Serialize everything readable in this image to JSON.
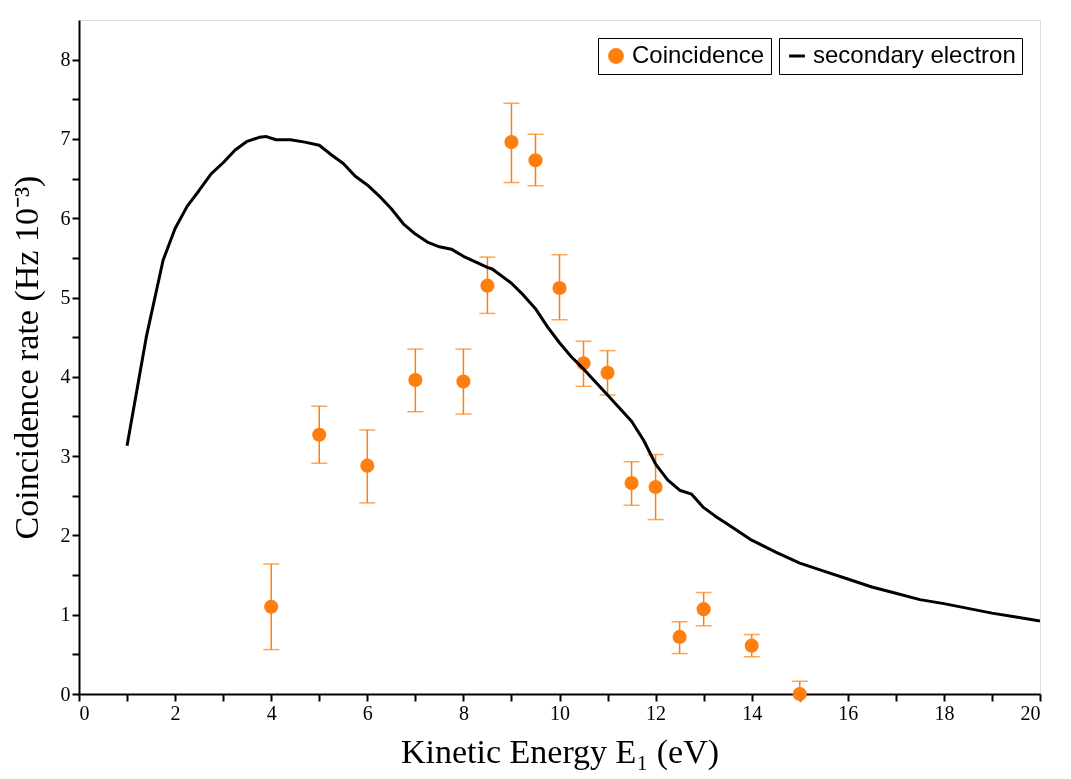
{
  "chart_data": {
    "type": "scatter",
    "xlabel": "Kinetic Energy E₁ (eV)",
    "ylabel": "Coincidence rate (Hz 10⁻³)",
    "xlim": [
      0,
      20
    ],
    "ylim": [
      0,
      8.5
    ],
    "xticks": [
      0,
      {
        "value": 1,
        "label": null
      },
      2,
      {
        "value": 3,
        "label": null
      },
      4,
      {
        "value": 5,
        "label": null
      },
      6,
      {
        "value": 7,
        "label": null
      },
      8,
      {
        "value": 9,
        "label": null
      },
      10,
      {
        "value": 11,
        "label": null
      },
      12,
      {
        "value": 13,
        "label": null
      },
      14,
      {
        "value": 15,
        "label": null
      },
      16,
      {
        "value": 17,
        "label": null
      },
      18,
      {
        "value": 19,
        "label": null
      },
      20
    ],
    "yticks": [
      0,
      {
        "value": 0.5,
        "label": null
      },
      1,
      {
        "value": 1.5,
        "label": null
      },
      2,
      {
        "value": 2.5,
        "label": null
      },
      3,
      {
        "value": 3.5,
        "label": null
      },
      4,
      {
        "value": 4.5,
        "label": null
      },
      5,
      {
        "value": 5.5,
        "label": null
      },
      6,
      {
        "value": 6.5,
        "label": null
      },
      7,
      {
        "value": 7.5,
        "label": null
      },
      8
    ],
    "grid": false,
    "legend": "top right",
    "series": [
      {
        "name": "Coincidence",
        "marker": "circle",
        "color": "#ff7f0e",
        "x": [
          4,
          5,
          6,
          7,
          8,
          8.5,
          9,
          9.5,
          10,
          10.5,
          11,
          11.5,
          12,
          12.5,
          13,
          14,
          15
        ],
        "values": [
          1.1,
          3.27,
          2.88,
          3.96,
          3.94,
          5.15,
          6.96,
          6.73,
          5.12,
          4.17,
          4.05,
          2.66,
          2.61,
          0.72,
          1.07,
          0.61,
          0.0
        ],
        "errors": [
          [
            0.56,
            1.64
          ],
          [
            2.91,
            3.63
          ],
          [
            2.41,
            3.33
          ],
          [
            3.56,
            4.35
          ],
          [
            3.53,
            4.35
          ],
          [
            4.8,
            5.51
          ],
          [
            6.45,
            7.45
          ],
          [
            6.41,
            7.06
          ],
          [
            4.72,
            5.54
          ],
          [
            3.88,
            4.45
          ],
          [
            3.77,
            4.33
          ],
          [
            2.38,
            2.93
          ],
          [
            2.2,
            3.02
          ],
          [
            0.51,
            0.91
          ],
          [
            0.86,
            1.28
          ],
          [
            0.47,
            0.75
          ],
          0.16
        ]
      },
      {
        "name": "secondary electron",
        "type": "line",
        "marker": "none",
        "line_style": "solid",
        "color": "#000000",
        "x": [
          1,
          1.4,
          1.75,
          2,
          2.25,
          2.5,
          2.75,
          3,
          3.25,
          3.5,
          3.75,
          3.9,
          4.1,
          4.4,
          4.7,
          5,
          5.25,
          5.5,
          5.75,
          6,
          6.25,
          6.5,
          6.75,
          7,
          7.25,
          7.5,
          7.75,
          8,
          8.25,
          8.5,
          8.6,
          9,
          9.25,
          9.5,
          9.75,
          10,
          10.25,
          10.5,
          11,
          11.5,
          11.75,
          12,
          12.25,
          12.5,
          12.75,
          13,
          13.25,
          13.5,
          14,
          14.5,
          15,
          15.5,
          16,
          16.5,
          17,
          17.5,
          18,
          18.5,
          19,
          19.5,
          20
        ],
        "values": [
          3.13,
          4.5,
          5.47,
          5.87,
          6.15,
          6.35,
          6.56,
          6.7,
          6.86,
          6.97,
          7.02,
          7.03,
          6.99,
          6.99,
          6.96,
          6.92,
          6.8,
          6.69,
          6.53,
          6.42,
          6.28,
          6.12,
          5.93,
          5.8,
          5.7,
          5.64,
          5.61,
          5.52,
          5.45,
          5.38,
          5.36,
          5.18,
          5.03,
          4.86,
          4.63,
          4.43,
          4.25,
          4.1,
          3.77,
          3.44,
          3.2,
          2.9,
          2.7,
          2.57,
          2.52,
          2.35,
          2.24,
          2.14,
          1.94,
          1.79,
          1.65,
          1.55,
          1.45,
          1.35,
          1.27,
          1.19,
          1.14,
          1.08,
          1.02,
          0.97,
          0.92
        ]
      }
    ]
  }
}
